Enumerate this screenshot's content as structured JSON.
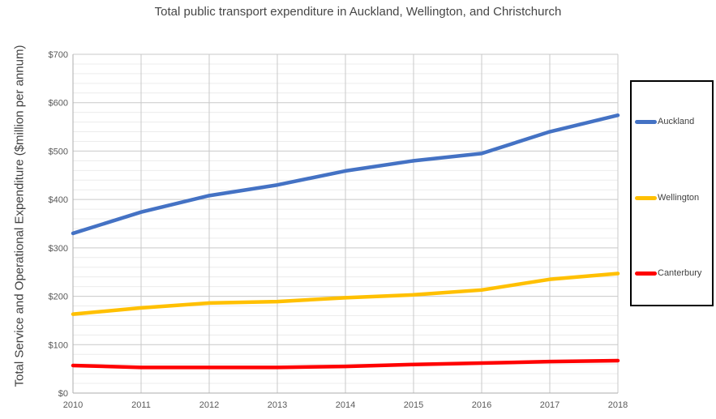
{
  "chart_data": {
    "type": "line",
    "title": "Total public transport expenditure in Auckland, Wellington, and Christchurch",
    "ylabel": "Total Service and Operational Expenditure ($million per annum)",
    "xlabel": "",
    "x": [
      2010,
      2011,
      2012,
      2013,
      2014,
      2015,
      2016,
      2017,
      2018
    ],
    "x_ticks": [
      "2010",
      "2011",
      "2012",
      "2013",
      "2014",
      "2015",
      "2016",
      "2017",
      "2018"
    ],
    "y_ticks": [
      "$0",
      "$100",
      "$200",
      "$300",
      "$400",
      "$500",
      "$600",
      "$700"
    ],
    "ylim": [
      0,
      700
    ],
    "y_major_step": 100,
    "y_minor_step": 20,
    "grid": true,
    "legend_position": "right",
    "series": [
      {
        "name": "Auckland",
        "color": "#4472C4",
        "values": [
          330,
          374,
          408,
          430,
          459,
          480,
          495,
          540,
          574
        ]
      },
      {
        "name": "Wellington",
        "color": "#FFC000",
        "values": [
          163,
          176,
          186,
          189,
          197,
          203,
          213,
          235,
          247
        ]
      },
      {
        "name": "Canterbury",
        "color": "#FF0000",
        "values": [
          57,
          53,
          53,
          53,
          55,
          59,
          62,
          65,
          67
        ]
      }
    ],
    "style": {
      "major_grid_color": "#C9C9C9",
      "minor_grid_color": "#ECECEC",
      "axis_line_color": "#ADADAD",
      "tick_label_color": "#595959",
      "title_color": "#464646",
      "legend_border_color": "#000000"
    }
  }
}
